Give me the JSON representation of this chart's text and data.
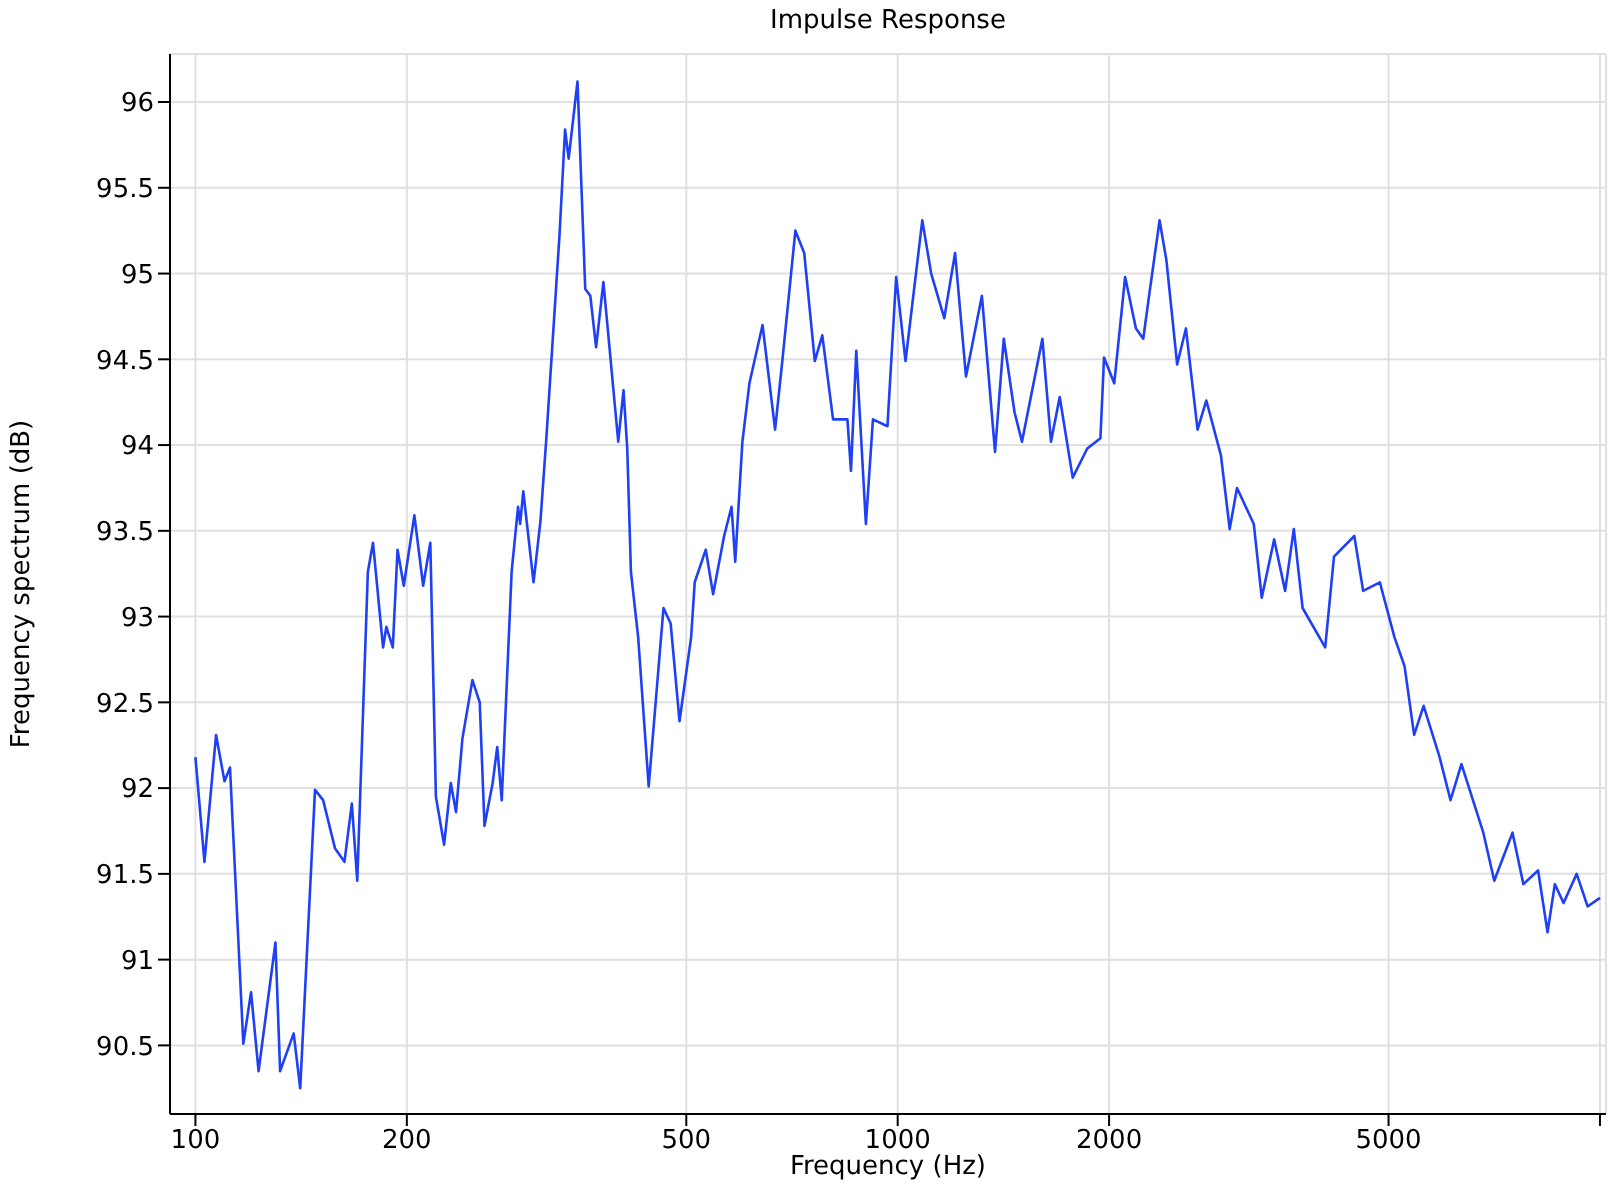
{
  "chart_data": {
    "type": "line",
    "title": "Impulse Response",
    "xlabel": "Frequency (Hz)",
    "ylabel": "Frequency spectrum (dB)",
    "log": "x",
    "grid": true,
    "marker": "none",
    "line_style": "solid",
    "xlim": [
      92,
      10200
    ],
    "xticks": [
      100,
      200,
      500,
      1000,
      2000,
      5000,
      {
        "value": 10000,
        "label": null
      }
    ],
    "ylim": [
      90.1,
      96.28
    ],
    "yticks": [
      90.5,
      91,
      91.5,
      92,
      92.5,
      93,
      93.5,
      94,
      94.5,
      95,
      95.5,
      96
    ],
    "x": [
      100,
      103,
      107,
      110,
      112,
      117,
      120,
      123,
      130,
      132,
      138,
      141,
      148,
      152,
      158,
      163,
      167,
      170,
      176,
      179,
      185,
      187,
      191,
      194,
      198,
      205,
      211,
      216,
      220,
      226,
      231,
      235,
      240,
      248,
      254,
      258,
      265,
      269,
      273,
      282,
      288,
      290,
      293,
      303,
      310,
      316,
      330,
      336,
      340,
      350,
      359,
      365,
      372,
      381,
      400,
      407,
      412,
      417,
      427,
      442,
      464,
      475,
      489,
      508,
      514,
      533,
      546,
      566,
      580,
      587,
      601,
      615,
      642,
      669,
      685,
      715,
      736,
      762,
      781,
      809,
      848,
      858,
      873,
      901,
      922,
      967,
      995,
      1026,
      1084,
      1116,
      1165,
      1207,
      1251,
      1318,
      1376,
      1416,
      1467,
      1503,
      1607,
      1653,
      1701,
      1775,
      1862,
      1944,
      1967,
      2034,
      2108,
      2184,
      2237,
      2280,
      2360,
      2413,
      2500,
      2573,
      2673,
      2751,
      2886,
      2970,
      3042,
      3214,
      3299,
      3436,
      3562,
      3665,
      3772,
      4062,
      4181,
      4469,
      4600,
      4859,
      5097,
      5270,
      5437,
      5609,
      5911,
      6126,
      6350,
      6822,
      7071,
      7507,
      7780,
      8164,
      8421,
      8625,
      8875,
      9265,
      9603,
      10000
    ],
    "series": [
      {
        "color": "#1f40f5",
        "values": [
          92.18,
          91.57,
          92.31,
          92.04,
          92.12,
          90.51,
          90.81,
          90.35,
          91.1,
          90.35,
          90.57,
          90.25,
          91.99,
          91.93,
          91.65,
          91.57,
          91.91,
          91.46,
          93.26,
          93.43,
          92.82,
          92.94,
          92.82,
          93.39,
          93.18,
          93.59,
          93.18,
          93.43,
          91.95,
          91.67,
          92.03,
          91.86,
          92.29,
          92.63,
          92.5,
          91.78,
          92.03,
          92.24,
          91.93,
          93.26,
          93.64,
          93.54,
          93.73,
          93.2,
          93.56,
          94.04,
          95.23,
          95.84,
          95.67,
          96.12,
          94.91,
          94.87,
          94.57,
          94.95,
          94.02,
          94.32,
          93.98,
          93.26,
          92.88,
          92.01,
          93.05,
          92.96,
          92.39,
          92.88,
          93.2,
          93.39,
          93.13,
          93.47,
          93.64,
          93.32,
          94.02,
          94.36,
          94.7,
          94.09,
          94.49,
          95.25,
          95.12,
          94.49,
          94.64,
          94.15,
          94.15,
          93.85,
          94.55,
          93.54,
          94.15,
          94.11,
          94.98,
          94.49,
          95.31,
          95,
          94.74,
          95.12,
          94.4,
          94.87,
          93.96,
          94.62,
          94.19,
          94.02,
          94.62,
          94.02,
          94.28,
          93.81,
          93.98,
          94.04,
          94.51,
          94.36,
          94.98,
          94.68,
          94.62,
          94.87,
          95.31,
          95.08,
          94.47,
          94.68,
          94.09,
          94.26,
          93.94,
          93.51,
          93.75,
          93.54,
          93.11,
          93.45,
          93.15,
          93.51,
          93.05,
          92.82,
          93.35,
          93.47,
          93.15,
          93.2,
          92.88,
          92.71,
          92.31,
          92.48,
          92.18,
          91.93,
          92.14,
          91.74,
          91.46,
          91.74,
          91.44,
          91.52,
          91.16,
          91.44,
          91.33,
          91.5,
          91.31,
          91.36
        ]
      }
    ]
  }
}
